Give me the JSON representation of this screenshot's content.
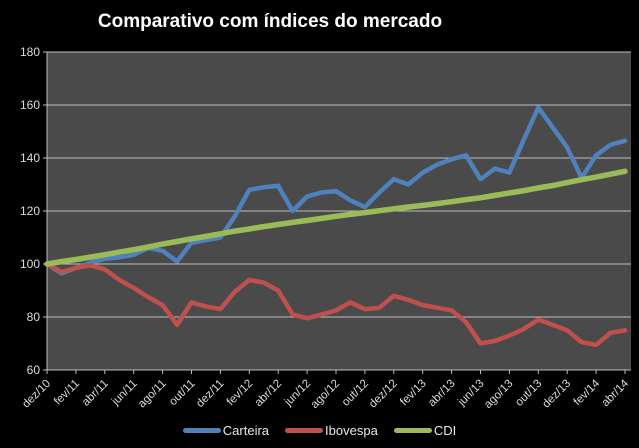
{
  "chart_data": {
    "type": "line",
    "title": "Comparativo com índices do mercado",
    "xlabel": "",
    "ylabel": "",
    "ylim": [
      60,
      180
    ],
    "y_ticks": [
      60,
      80,
      100,
      120,
      140,
      160,
      180
    ],
    "grid": "horizontal",
    "legend_position": "bottom",
    "page_bg": "#000000",
    "plot_bg": "#4a4a4a",
    "grid_color": "#bfbfbf",
    "text_color": "#dcdcdc",
    "title_color": "#ffffff",
    "x_tick_labels": [
      "dez/10",
      "fev/11",
      "abr/11",
      "jun/11",
      "ago/11",
      "out/11",
      "dez/11",
      "fev/12",
      "abr/12",
      "jun/12",
      "ago/12",
      "out/12",
      "dez/12",
      "fev/13",
      "abr/13",
      "jun/13",
      "ago/13",
      "out/13",
      "dez/13",
      "fev/14",
      "abr/14"
    ],
    "points_per_tick": 2,
    "series": [
      {
        "name": "Carteira",
        "color": "#4f81bd",
        "values": [
          100,
          96.5,
          98.5,
          100.5,
          102,
          102.5,
          103.5,
          106,
          105,
          101,
          108,
          109,
          110,
          118,
          128,
          129,
          129.5,
          120,
          125.5,
          127,
          127.5,
          124,
          121.5,
          127,
          132,
          130,
          134.5,
          137.5,
          139.5,
          141,
          132,
          136,
          134.5,
          147,
          159,
          151.5,
          144,
          132.5,
          141,
          145,
          146.5
        ]
      },
      {
        "name": "Ibovespa",
        "color": "#c0504d",
        "values": [
          100,
          97,
          98.5,
          99.5,
          98,
          94,
          91,
          87.5,
          84.5,
          77,
          85.5,
          84,
          83,
          89.5,
          94,
          93,
          90,
          81,
          79.5,
          81,
          82.5,
          85.5,
          83,
          83.5,
          88,
          86.5,
          84.5,
          83.5,
          82.5,
          78,
          70,
          71,
          73,
          75.5,
          79,
          77,
          75,
          70.5,
          69.5,
          74,
          75
        ]
      },
      {
        "name": "CDI",
        "color": "#9bbb59",
        "values": [
          100,
          100.9,
          101.7,
          102.6,
          103.5,
          104.5,
          105.4,
          106.4,
          107.5,
          108.5,
          109.5,
          110.4,
          111.4,
          112.4,
          113.2,
          114.1,
          114.9,
          115.7,
          116.4,
          117.2,
          118,
          118.7,
          119.4,
          120.1,
          120.8,
          121.5,
          122.1,
          122.8,
          123.5,
          124.3,
          125,
          125.9,
          126.8,
          127.7,
          128.7,
          129.6,
          130.7,
          131.8,
          132.8,
          133.9,
          135
        ]
      }
    ]
  }
}
